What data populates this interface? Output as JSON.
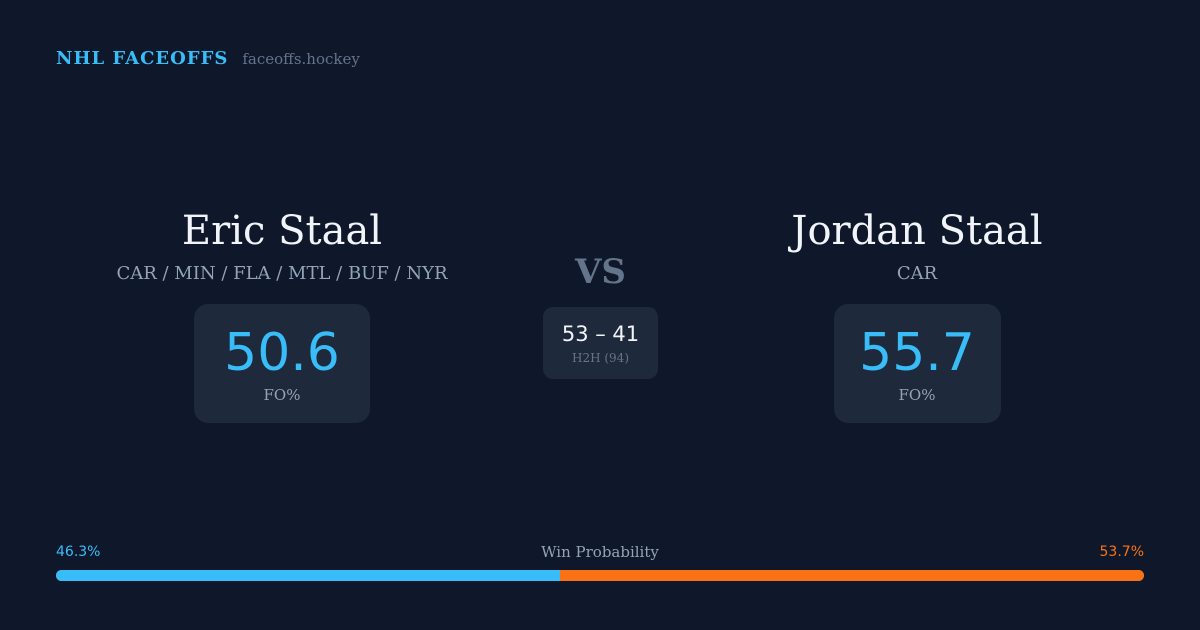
{
  "brand": {
    "name": "NHL FACEOFFS",
    "url": "faceoffs.hockey"
  },
  "players": {
    "left": {
      "name": "Eric Staal",
      "teams": "CAR / MIN / FLA / MTL / BUF / NYR",
      "fo_value": "50.6",
      "fo_label": "FO%"
    },
    "right": {
      "name": "Jordan Staal",
      "teams": "CAR",
      "fo_value": "55.7",
      "fo_label": "FO%"
    }
  },
  "vs_label": "VS",
  "head_to_head": {
    "score": "53 – 41",
    "label": "H2H (94)"
  },
  "win_probability": {
    "title": "Win Probability",
    "left_label": "46.3%",
    "right_label": "53.7%",
    "left_value": 46.3,
    "right_value": 53.7,
    "colors": {
      "left": "#38bdf8",
      "right": "#f97316"
    }
  }
}
